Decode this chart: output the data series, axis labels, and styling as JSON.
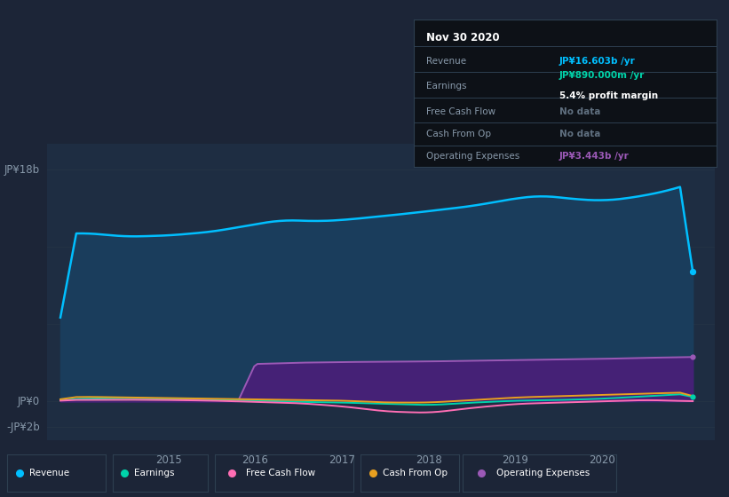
{
  "bg_color": "#1c2537",
  "plot_bg_color": "#192030",
  "chart_area_color": "#1e2d42",
  "title": "Nov 30 2020",
  "ylim": [
    -3000000000.0,
    20000000000.0
  ],
  "xlim_start": 2013.6,
  "xlim_end": 2021.3,
  "revenue_color": "#00bfff",
  "earnings_color": "#00d4aa",
  "fcf_color": "#ff6eb4",
  "cashfromop_color": "#e8a020",
  "opex_color": "#9b59b6",
  "revenue_fill_color": "#1a3d5c",
  "opex_fill_color": "#4a1e7a",
  "grid_color": "#263545",
  "label_color": "#8899aa",
  "tooltip_bg": "#0d1117",
  "tooltip_border": "#2a3a4a",
  "revenue_value_color": "#00bfff",
  "earnings_value_color": "#00d4aa",
  "opex_value_color": "#9b59b6",
  "legend_colors": [
    "#00bfff",
    "#00d4aa",
    "#ff6eb4",
    "#e8a020",
    "#9b59b6"
  ],
  "legend_labels": [
    "Revenue",
    "Earnings",
    "Free Cash Flow",
    "Cash From Op",
    "Operating Expenses"
  ]
}
